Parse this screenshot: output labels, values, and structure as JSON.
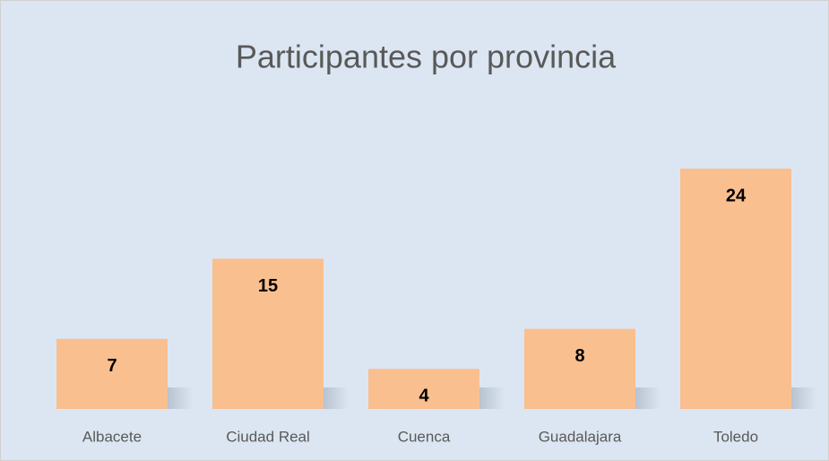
{
  "chart_data": {
    "type": "bar",
    "title": "Participantes por provincia",
    "categories": [
      "Albacete",
      "Ciudad Real",
      "Cuenca",
      "Guadalajara",
      "Toledo"
    ],
    "values": [
      7,
      15,
      4,
      8,
      24
    ],
    "color": "#f9bf8f"
  }
}
